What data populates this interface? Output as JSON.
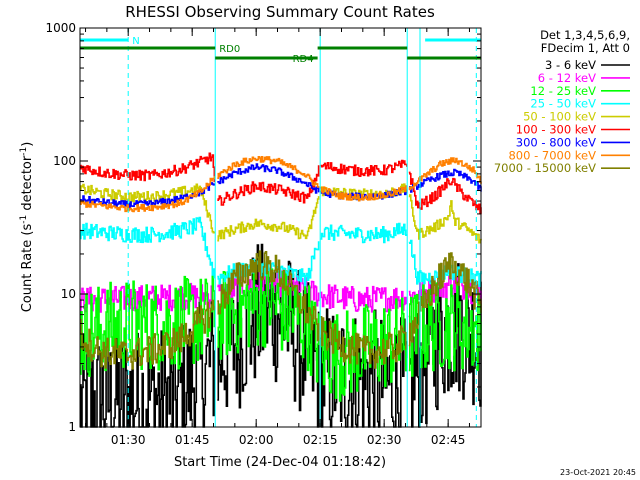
{
  "chart_data": {
    "type": "line",
    "title": "RHESSI Observing Summary Count Rates",
    "xlabel": "Start Time (24-Dec-04 01:18:42)",
    "ylabel": "Count Rate (s",
    "ylabel_sup1": "-1",
    "ylabel_mid": " detector",
    "ylabel_sup2": "-1",
    "ylabel_end": ")",
    "yscale": "log",
    "ylim": [
      1,
      1000
    ],
    "xlim": [
      1.3117,
      2.8783
    ],
    "x_ticks": [
      {
        "t": 1.5,
        "label": "01:30"
      },
      {
        "t": 1.75,
        "label": "01:45"
      },
      {
        "t": 2.0,
        "label": "02:00"
      },
      {
        "t": 2.25,
        "label": "02:15"
      },
      {
        "t": 2.5,
        "label": "02:30"
      },
      {
        "t": 2.75,
        "label": "02:45"
      }
    ],
    "y_ticks": [
      {
        "v": 1,
        "label": "1"
      },
      {
        "v": 10,
        "label": "10"
      },
      {
        "v": 100,
        "label": "100"
      },
      {
        "v": 1000,
        "label": "1000"
      }
    ],
    "legend": {
      "position": "right",
      "header": [
        "Det 1,3,4,5,6,9,",
        "FDecim 1, Att 0"
      ]
    },
    "footer_timestamp": "23-Oct-2021 20:45",
    "flags": [
      {
        "label": "N",
        "color": "#00ffff",
        "segments": [
          [
            1.3117,
            1.5
          ],
          [
            2.66,
            2.8783
          ]
        ],
        "level": 0
      },
      {
        "label": "RD0",
        "color": "#008000",
        "segments": [
          [
            1.3117,
            1.84
          ],
          [
            2.24,
            2.59
          ]
        ],
        "level": 1
      },
      {
        "label": "RD4",
        "color": "#008000",
        "segments": [
          [
            1.84,
            2.24
          ],
          [
            2.59,
            2.8783
          ]
        ],
        "level": 2
      }
    ],
    "solid_lines": [
      1.3117,
      1.84,
      2.25,
      2.59,
      2.64
    ],
    "dashed_lines": [
      1.5,
      2.86
    ],
    "gaps": [
      [
        1.84,
        1.845
      ],
      [
        2.245,
        2.25
      ],
      [
        2.59,
        2.595
      ]
    ],
    "series": [
      {
        "name": "3 - 6 keV",
        "color": "#000000",
        "noise": 0.55,
        "points": [
          [
            1.3117,
            1.4
          ],
          [
            1.4,
            1.6
          ],
          [
            1.5,
            1.6
          ],
          [
            1.6,
            1.7
          ],
          [
            1.68,
            1.6
          ],
          [
            1.75,
            2.3
          ],
          [
            1.84,
            3.2
          ],
          [
            1.9,
            4.0
          ],
          [
            1.95,
            5.3
          ],
          [
            2.0,
            6.8
          ],
          [
            2.05,
            7.5
          ],
          [
            2.1,
            7.0
          ],
          [
            2.15,
            5.0
          ],
          [
            2.2,
            3.5
          ],
          [
            2.25,
            2.5
          ],
          [
            2.3,
            2.4
          ],
          [
            2.4,
            2.3
          ],
          [
            2.5,
            2.1
          ],
          [
            2.59,
            1.9
          ],
          [
            2.65,
            3.0
          ],
          [
            2.72,
            5.0
          ],
          [
            2.78,
            6.0
          ],
          [
            2.85,
            5.0
          ],
          [
            2.8783,
            4.5
          ]
        ]
      },
      {
        "name": "6 - 12 keV",
        "color": "#ff00ff",
        "noise": 0.1,
        "points": [
          [
            1.3117,
            9.0
          ],
          [
            1.5,
            9.2
          ],
          [
            1.7,
            9.5
          ],
          [
            1.84,
            9.8
          ],
          [
            2.0,
            12.0
          ],
          [
            2.1,
            12.0
          ],
          [
            2.25,
            9.8
          ],
          [
            2.4,
            9.0
          ],
          [
            2.59,
            9.5
          ],
          [
            2.7,
            11.0
          ],
          [
            2.78,
            12.0
          ],
          [
            2.85,
            10.5
          ],
          [
            2.8783,
            9.5
          ]
        ]
      },
      {
        "name": "12 - 25 keV",
        "color": "#00ff00",
        "noise": 0.35,
        "points": [
          [
            1.3117,
            5.0
          ],
          [
            1.4,
            5.5
          ],
          [
            1.5,
            6.0
          ],
          [
            1.6,
            5.8
          ],
          [
            1.7,
            6.0
          ],
          [
            1.84,
            6.5
          ],
          [
            1.95,
            8.0
          ],
          [
            2.05,
            9.0
          ],
          [
            2.1,
            7.5
          ],
          [
            2.2,
            6.0
          ],
          [
            2.25,
            3.5
          ],
          [
            2.35,
            3.5
          ],
          [
            2.45,
            4.0
          ],
          [
            2.59,
            4.5
          ],
          [
            2.65,
            5.5
          ],
          [
            2.75,
            6.0
          ],
          [
            2.85,
            5.5
          ],
          [
            2.8783,
            5.0
          ]
        ]
      },
      {
        "name": "25 - 50 keV",
        "color": "#00ffff",
        "noise": 0.06,
        "points": [
          [
            1.3117,
            30.0
          ],
          [
            1.4,
            29.0
          ],
          [
            1.5,
            28.0
          ],
          [
            1.6,
            28.0
          ],
          [
            1.7,
            30.0
          ],
          [
            1.78,
            33.0
          ],
          [
            1.84,
            13.0
          ],
          [
            1.9,
            14.5
          ],
          [
            2.0,
            16.0
          ],
          [
            2.1,
            15.0
          ],
          [
            2.2,
            13.0
          ],
          [
            2.25,
            29.0
          ],
          [
            2.4,
            28.0
          ],
          [
            2.5,
            28.0
          ],
          [
            2.59,
            31.0
          ],
          [
            2.63,
            13.0
          ],
          [
            2.7,
            13.5
          ],
          [
            2.75,
            15.0
          ],
          [
            2.8,
            14.0
          ],
          [
            2.8783,
            13.0
          ]
        ]
      },
      {
        "name": "50 - 100 keV",
        "color": "#cccc00",
        "noise": 0.04,
        "points": [
          [
            1.3117,
            62.0
          ],
          [
            1.4,
            57.0
          ],
          [
            1.5,
            54.0
          ],
          [
            1.6,
            54.0
          ],
          [
            1.7,
            58.0
          ],
          [
            1.78,
            62.0
          ],
          [
            1.84,
            27.0
          ],
          [
            1.9,
            30.0
          ],
          [
            2.0,
            34.0
          ],
          [
            2.1,
            32.0
          ],
          [
            2.2,
            27.0
          ],
          [
            2.25,
            60.0
          ],
          [
            2.4,
            56.0
          ],
          [
            2.5,
            57.0
          ],
          [
            2.59,
            62.0
          ],
          [
            2.63,
            28.0
          ],
          [
            2.7,
            32.0
          ],
          [
            2.75,
            38.0
          ],
          [
            2.76,
            50.0
          ],
          [
            2.77,
            36.0
          ],
          [
            2.82,
            31.0
          ],
          [
            2.8783,
            25.0
          ]
        ]
      },
      {
        "name": "100 - 300 keV",
        "color": "#ff0000",
        "noise": 0.04,
        "points": [
          [
            1.3117,
            90.0
          ],
          [
            1.4,
            82.0
          ],
          [
            1.5,
            78.0
          ],
          [
            1.6,
            78.0
          ],
          [
            1.7,
            86.0
          ],
          [
            1.78,
            98.0
          ],
          [
            1.83,
            108.0
          ],
          [
            1.84,
            48.0
          ],
          [
            1.9,
            55.0
          ],
          [
            2.0,
            65.0
          ],
          [
            2.1,
            60.0
          ],
          [
            2.2,
            52.0
          ],
          [
            2.25,
            92.0
          ],
          [
            2.4,
            84.0
          ],
          [
            2.5,
            85.0
          ],
          [
            2.59,
            95.0
          ],
          [
            2.63,
            45.0
          ],
          [
            2.7,
            55.0
          ],
          [
            2.76,
            72.0
          ],
          [
            2.8,
            58.0
          ],
          [
            2.8783,
            42.0
          ]
        ]
      },
      {
        "name": "300 - 800 keV",
        "color": "#0000ff",
        "noise": 0.025,
        "points": [
          [
            1.3117,
            52.0
          ],
          [
            1.4,
            49.0
          ],
          [
            1.5,
            47.0
          ],
          [
            1.6,
            48.0
          ],
          [
            1.7,
            52.0
          ],
          [
            1.78,
            58.0
          ],
          [
            1.84,
            68.0
          ],
          [
            1.92,
            82.0
          ],
          [
            2.0,
            90.0
          ],
          [
            2.08,
            85.0
          ],
          [
            2.18,
            70.0
          ],
          [
            2.25,
            58.0
          ],
          [
            2.32,
            55.0
          ],
          [
            2.4,
            54.0
          ],
          [
            2.5,
            55.0
          ],
          [
            2.59,
            60.0
          ],
          [
            2.65,
            68.0
          ],
          [
            2.72,
            78.0
          ],
          [
            2.78,
            82.0
          ],
          [
            2.85,
            70.0
          ],
          [
            2.8783,
            60.0
          ]
        ]
      },
      {
        "name": "800 - 7000 keV",
        "color": "#ff8000",
        "noise": 0.025,
        "points": [
          [
            1.3117,
            48.0
          ],
          [
            1.4,
            46.0
          ],
          [
            1.5,
            44.0
          ],
          [
            1.6,
            45.0
          ],
          [
            1.7,
            48.0
          ],
          [
            1.78,
            58.0
          ],
          [
            1.84,
            76.0
          ],
          [
            1.92,
            95.0
          ],
          [
            2.0,
            105.0
          ],
          [
            2.08,
            100.0
          ],
          [
            2.18,
            82.0
          ],
          [
            2.25,
            62.0
          ],
          [
            2.32,
            55.0
          ],
          [
            2.4,
            53.0
          ],
          [
            2.5,
            55.0
          ],
          [
            2.59,
            62.0
          ],
          [
            2.65,
            75.0
          ],
          [
            2.72,
            95.0
          ],
          [
            2.78,
            102.0
          ],
          [
            2.85,
            85.0
          ],
          [
            2.8783,
            70.0
          ]
        ]
      },
      {
        "name": "7000 - 15000 keV",
        "color": "#808000",
        "noise": 0.12,
        "points": [
          [
            1.3117,
            5.0
          ],
          [
            1.35,
            4.2
          ],
          [
            1.4,
            3.6
          ],
          [
            1.5,
            3.5
          ],
          [
            1.6,
            3.8
          ],
          [
            1.7,
            4.5
          ],
          [
            1.84,
            8.0
          ],
          [
            1.92,
            13.0
          ],
          [
            2.0,
            17.0
          ],
          [
            2.08,
            15.0
          ],
          [
            2.15,
            10.0
          ],
          [
            2.25,
            5.2
          ],
          [
            2.35,
            4.0
          ],
          [
            2.45,
            3.6
          ],
          [
            2.55,
            4.0
          ],
          [
            2.62,
            6.0
          ],
          [
            2.7,
            12.0
          ],
          [
            2.76,
            17.0
          ],
          [
            2.82,
            13.0
          ],
          [
            2.8783,
            8.0
          ]
        ]
      }
    ]
  }
}
